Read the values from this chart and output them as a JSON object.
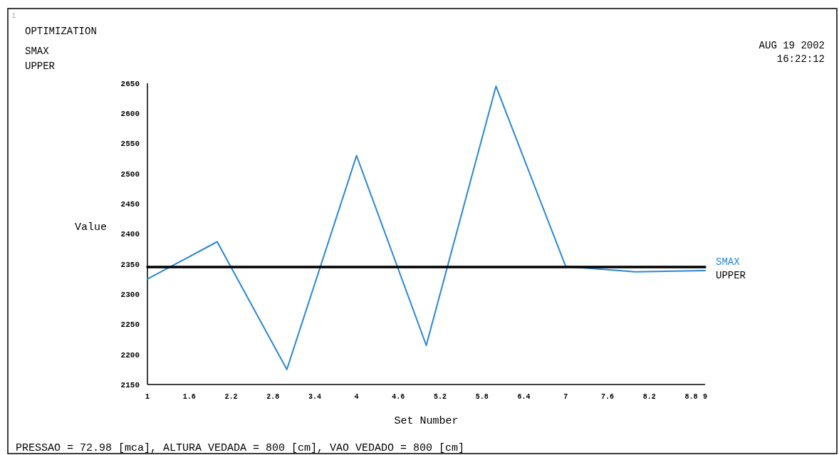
{
  "chart_data": {
    "type": "line",
    "title": "OPTIMIZATION",
    "xlabel": "Set Number",
    "ylabel": "Value",
    "x": [
      1,
      2,
      3,
      4,
      5,
      6,
      7,
      8,
      9
    ],
    "series": [
      {
        "name": "SMAX",
        "color": "#2a86d8",
        "values": [
          2325,
          2387,
          2175,
          2530,
          2215,
          2645,
          2346,
          2337,
          2339
        ]
      },
      {
        "name": "UPPER",
        "color": "#000000",
        "values": [
          2345,
          2345,
          2345,
          2345,
          2345,
          2345,
          2345,
          2345,
          2345
        ]
      }
    ],
    "xlim": [
      1,
      9
    ],
    "xticks": [
      1,
      1.6,
      2.2,
      2.8,
      3.4,
      4,
      4.6,
      5.2,
      5.8,
      6.4,
      7,
      7.6,
      8.2,
      8.8,
      9
    ],
    "ylim": [
      2150,
      2650
    ],
    "yticks": [
      2150,
      2200,
      2250,
      2300,
      2350,
      2400,
      2450,
      2500,
      2550,
      2600,
      2650
    ],
    "legend": "right",
    "grid": false,
    "marker": "none",
    "line_style": "solid",
    "annotations": [
      "1",
      "SMAX",
      "UPPER",
      "AUG 19 2002",
      "16:22:12",
      "PRESSAO = 72.98 [mca],   ALTURA VEDADA = 800 [cm],   VAO VEDADO = 800 [cm]"
    ]
  }
}
